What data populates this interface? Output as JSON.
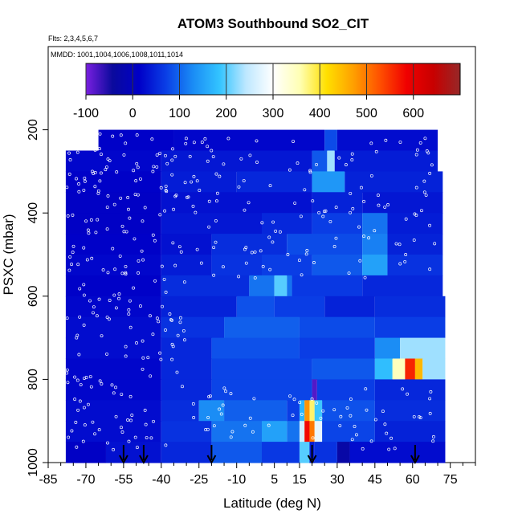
{
  "chart_data": {
    "type": "heatmap",
    "title": "ATOM3 Southbound SO2_CIT",
    "flights_note": "Flts: 2,3,4,5,6,7",
    "dates_note": "MMDD: 1001,1004,1006,1008,1011,1014",
    "xlabel": "Latitude (deg N)",
    "ylabel": "PSXC (mbar)",
    "xlim": [
      -85,
      85
    ],
    "ylim": [
      1000,
      0
    ],
    "x_ticks": [
      -85,
      -70,
      -55,
      -40,
      -25,
      -10,
      5,
      15,
      30,
      45,
      60,
      75
    ],
    "x_tick_labels": [
      "-85",
      "-70",
      "-55",
      "-40",
      "-25",
      "-10",
      "5",
      "15",
      "30",
      "45",
      "60",
      "75"
    ],
    "y_ticks": [
      200,
      400,
      600,
      800,
      1000
    ],
    "y_tick_labels": [
      "200",
      "400",
      "600",
      "800",
      "1000"
    ],
    "colorbar": {
      "range": [
        -100,
        700
      ],
      "ticks": [
        -100,
        0,
        100,
        200,
        300,
        400,
        500,
        600
      ],
      "tick_labels": [
        "-100",
        "0",
        "100",
        "200",
        "300",
        "400",
        "500",
        "600"
      ],
      "colors": [
        "#7a1fe0",
        "#0a0a9c",
        "#0000c8",
        "#0a3fe6",
        "#1a8cf5",
        "#33c4ff",
        "#bfe8ff",
        "#ffffff",
        "#ffffb4",
        "#ffe000",
        "#ffa000",
        "#ff5000",
        "#f00000",
        "#c80000",
        "#962828"
      ]
    },
    "flight_arrows_lat": [
      -55,
      -47,
      -20,
      20,
      61
    ],
    "layers": [
      {
        "p": 225,
        "segments": [
          [
            -65,
            -35,
            15
          ],
          [
            -35,
            25,
            20
          ],
          [
            25,
            30,
            80
          ],
          [
            30,
            70,
            25
          ]
        ]
      },
      {
        "p": 275,
        "segments": [
          [
            -78,
            -40,
            20
          ],
          [
            -40,
            20,
            35
          ],
          [
            20,
            26,
            90
          ],
          [
            26,
            29,
            230
          ],
          [
            29,
            70,
            40
          ]
        ]
      },
      {
        "p": 325,
        "segments": [
          [
            -78,
            -40,
            15
          ],
          [
            -40,
            -10,
            40
          ],
          [
            -10,
            20,
            50
          ],
          [
            20,
            33,
            140
          ],
          [
            33,
            72,
            45
          ]
        ]
      },
      {
        "p": 375,
        "segments": [
          [
            -78,
            -40,
            10
          ],
          [
            -40,
            20,
            30
          ],
          [
            20,
            40,
            45
          ],
          [
            40,
            72,
            35
          ]
        ]
      },
      {
        "p": 425,
        "segments": [
          [
            -78,
            -40,
            10
          ],
          [
            -40,
            0,
            35
          ],
          [
            0,
            20,
            50
          ],
          [
            20,
            40,
            70
          ],
          [
            40,
            50,
            110
          ],
          [
            50,
            72,
            40
          ]
        ]
      },
      {
        "p": 475,
        "segments": [
          [
            -78,
            -40,
            15
          ],
          [
            -40,
            -20,
            30
          ],
          [
            -20,
            10,
            55
          ],
          [
            10,
            40,
            80
          ],
          [
            40,
            50,
            120
          ],
          [
            50,
            72,
            45
          ]
        ]
      },
      {
        "p": 525,
        "segments": [
          [
            -78,
            -40,
            20
          ],
          [
            -40,
            -20,
            40
          ],
          [
            -20,
            0,
            60
          ],
          [
            0,
            20,
            70
          ],
          [
            20,
            40,
            90
          ],
          [
            40,
            50,
            150
          ],
          [
            50,
            72,
            60
          ]
        ]
      },
      {
        "p": 575,
        "segments": [
          [
            -78,
            -40,
            15
          ],
          [
            -40,
            -5,
            55
          ],
          [
            -5,
            5,
            110
          ],
          [
            5,
            10,
            200
          ],
          [
            10,
            12,
            110
          ],
          [
            12,
            40,
            65
          ],
          [
            40,
            72,
            50
          ]
        ]
      },
      {
        "p": 625,
        "segments": [
          [
            -78,
            -40,
            20
          ],
          [
            -40,
            -10,
            45
          ],
          [
            -10,
            5,
            85
          ],
          [
            5,
            25,
            70
          ],
          [
            25,
            45,
            45
          ],
          [
            45,
            73,
            55
          ]
        ]
      },
      {
        "p": 675,
        "segments": [
          [
            -78,
            -40,
            25
          ],
          [
            -40,
            -15,
            60
          ],
          [
            -15,
            15,
            95
          ],
          [
            15,
            45,
            80
          ],
          [
            45,
            73,
            70
          ]
        ]
      },
      {
        "p": 725,
        "segments": [
          [
            -78,
            -40,
            25
          ],
          [
            -40,
            -20,
            50
          ],
          [
            -20,
            15,
            85
          ],
          [
            15,
            45,
            70
          ],
          [
            45,
            55,
            130
          ],
          [
            55,
            73,
            230
          ]
        ]
      },
      {
        "p": 775,
        "segments": [
          [
            -78,
            -40,
            20
          ],
          [
            -40,
            -20,
            50
          ],
          [
            -20,
            20,
            75
          ],
          [
            20,
            45,
            90
          ],
          [
            45,
            52,
            180
          ],
          [
            52,
            57,
            350
          ],
          [
            57,
            61,
            560
          ],
          [
            61,
            64,
            450
          ],
          [
            64,
            73,
            230
          ]
        ]
      },
      {
        "p": 825,
        "segments": [
          [
            -78,
            -40,
            20
          ],
          [
            -40,
            -20,
            50
          ],
          [
            -20,
            20,
            75
          ],
          [
            20,
            22,
            -80
          ],
          [
            22,
            45,
            70
          ],
          [
            45,
            73,
            50
          ]
        ]
      },
      {
        "p": 875,
        "segments": [
          [
            -78,
            -40,
            25
          ],
          [
            -40,
            -25,
            55
          ],
          [
            -25,
            -15,
            130
          ],
          [
            -15,
            10,
            95
          ],
          [
            10,
            15,
            70
          ],
          [
            15,
            17,
            170
          ],
          [
            17,
            19,
            480
          ],
          [
            19,
            21,
            380
          ],
          [
            21,
            24,
            190
          ],
          [
            24,
            45,
            85
          ],
          [
            45,
            73,
            55
          ]
        ]
      },
      {
        "p": 925,
        "segments": [
          [
            -78,
            -40,
            25
          ],
          [
            -40,
            -20,
            60
          ],
          [
            -20,
            0,
            110
          ],
          [
            0,
            10,
            150
          ],
          [
            10,
            15,
            110
          ],
          [
            15,
            17,
            260
          ],
          [
            17,
            19,
            580
          ],
          [
            19,
            21,
            500
          ],
          [
            21,
            24,
            280
          ],
          [
            24,
            45,
            75
          ],
          [
            45,
            73,
            45
          ]
        ]
      },
      {
        "p": 975,
        "segments": [
          [
            -78,
            -62,
            10
          ],
          [
            -62,
            -40,
            30
          ],
          [
            -40,
            -20,
            50
          ],
          [
            -20,
            0,
            90
          ],
          [
            0,
            15,
            65
          ],
          [
            15,
            19,
            200
          ],
          [
            19,
            21,
            40
          ],
          [
            21,
            30,
            60
          ],
          [
            30,
            35,
            -30
          ],
          [
            35,
            73,
            25
          ]
        ]
      }
    ]
  }
}
